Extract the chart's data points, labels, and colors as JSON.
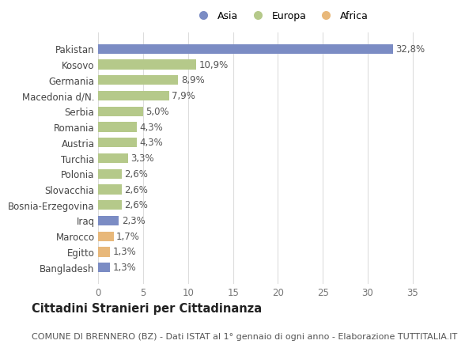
{
  "categories": [
    "Pakistan",
    "Kosovo",
    "Germania",
    "Macedonia d/N.",
    "Serbia",
    "Romania",
    "Austria",
    "Turchia",
    "Polonia",
    "Slovacchia",
    "Bosnia-Erzegovina",
    "Iraq",
    "Marocco",
    "Egitto",
    "Bangladesh"
  ],
  "values": [
    32.8,
    10.9,
    8.9,
    7.9,
    5.0,
    4.3,
    4.3,
    3.3,
    2.6,
    2.6,
    2.6,
    2.3,
    1.7,
    1.3,
    1.3
  ],
  "labels": [
    "32,8%",
    "10,9%",
    "8,9%",
    "7,9%",
    "5,0%",
    "4,3%",
    "4,3%",
    "3,3%",
    "2,6%",
    "2,6%",
    "2,6%",
    "2,3%",
    "1,7%",
    "1,3%",
    "1,3%"
  ],
  "continent": [
    "Asia",
    "Europa",
    "Europa",
    "Europa",
    "Europa",
    "Europa",
    "Europa",
    "Europa",
    "Europa",
    "Europa",
    "Europa",
    "Asia",
    "Africa",
    "Africa",
    "Asia"
  ],
  "colors": {
    "Asia": "#7b8cc4",
    "Europa": "#b5c98a",
    "Africa": "#e8b87a"
  },
  "xlim": [
    0,
    37
  ],
  "xticks": [
    0,
    5,
    10,
    15,
    20,
    25,
    30,
    35
  ],
  "title": "Cittadini Stranieri per Cittadinanza",
  "subtitle": "COMUNE DI BRENNERO (BZ) - Dati ISTAT al 1° gennaio di ogni anno - Elaborazione TUTTITALIA.IT",
  "bg_color": "#ffffff",
  "grid_color": "#dddddd",
  "bar_height": 0.62,
  "label_fontsize": 8.5,
  "title_fontsize": 10.5,
  "subtitle_fontsize": 8,
  "tick_fontsize": 8.5,
  "ytick_fontsize": 8.5
}
